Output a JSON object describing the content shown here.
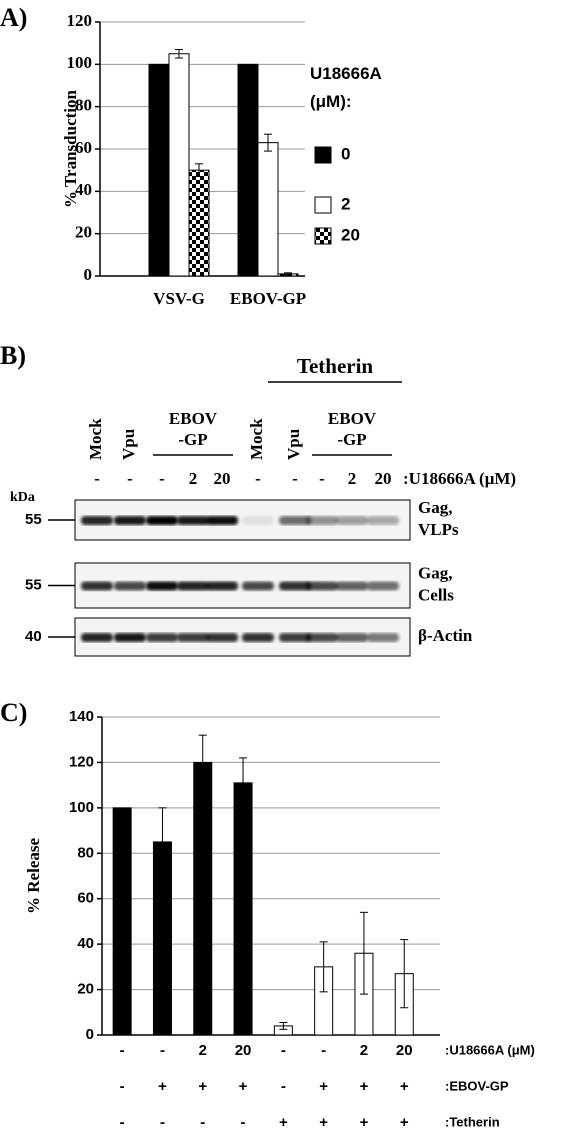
{
  "chart_data": [
    {
      "type": "bar",
      "panel": "A)",
      "y_label": "% Transduction",
      "categories": [
        "VSV-G",
        "EBOV-GP"
      ],
      "legend_title": "U18666A (μM):",
      "series": [
        {
          "name": "0",
          "color": "#000000",
          "values": [
            100,
            100
          ]
        },
        {
          "name": "2",
          "color": "#ffffff",
          "values": [
            105,
            63
          ],
          "errors": [
            2,
            4
          ]
        },
        {
          "name": "20",
          "color": "#000000",
          "pattern": "checker",
          "values": [
            50,
            1
          ],
          "errors": [
            3,
            0.5
          ]
        }
      ],
      "ylim": [
        0,
        120
      ],
      "yticks": [
        0,
        20,
        40,
        60,
        80,
        100,
        120
      ],
      "grid": true
    },
    {
      "type": "bar",
      "panel": "C)",
      "y_label": "% Release",
      "values": [
        100,
        85,
        120,
        111,
        4,
        30,
        36,
        27
      ],
      "errors": [
        null,
        15,
        12,
        11,
        1.5,
        11,
        18,
        15
      ],
      "colors": [
        "#000000",
        "#000000",
        "#000000",
        "#000000",
        "#ffffff",
        "#ffffff",
        "#ffffff",
        "#ffffff"
      ],
      "ylim": [
        0,
        140
      ],
      "yticks": [
        0,
        20,
        40,
        60,
        80,
        100,
        120,
        140
      ],
      "grid": true,
      "condition_rows": [
        {
          "label": ":U18666A (μM)",
          "values": [
            "-",
            "-",
            "2",
            "20",
            "-",
            "-",
            "2",
            "20"
          ]
        },
        {
          "label": ":EBOV-GP",
          "values": [
            "-",
            "+",
            "+",
            "+",
            "-",
            "+",
            "+",
            "+"
          ]
        },
        {
          "label": ":Tetherin",
          "values": [
            "-",
            "-",
            "-",
            "-",
            "+",
            "+",
            "+",
            "+"
          ]
        }
      ]
    }
  ],
  "blot": {
    "panel": "B)",
    "group_label": "Tetherin",
    "lanes": [
      "Mock",
      "Vpu",
      "EBOV -GP",
      "Mock",
      "Vpu",
      "EBOV -GP"
    ],
    "treatment": {
      "label": ":U18666A (μM)",
      "values": [
        "-",
        "-",
        "-",
        "2",
        "20",
        "-",
        "-",
        "-",
        "2",
        "20"
      ]
    },
    "size_unit": "kDa",
    "blots": [
      {
        "marker": "55",
        "label": "Gag, VLPs"
      },
      {
        "marker": "55",
        "label": "Gag, Cells"
      },
      {
        "marker": "40",
        "label": "β-Actin"
      }
    ]
  }
}
